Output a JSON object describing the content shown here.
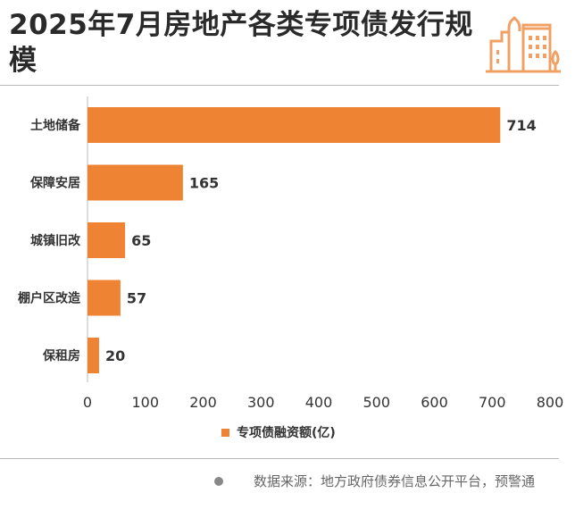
{
  "title": "2025年7月房地产各类专项债发行规模",
  "icon": "city-buildings-icon",
  "chart_data": {
    "type": "bar",
    "orientation": "horizontal",
    "categories": [
      "土地储备",
      "保障安居",
      "城镇旧改",
      "棚户区改造",
      "保租房"
    ],
    "values": [
      714,
      165,
      65,
      57,
      20
    ],
    "xlim": [
      0,
      800
    ],
    "xticks": [
      0,
      100,
      200,
      300,
      400,
      500,
      600,
      700,
      800
    ],
    "series": [
      {
        "name": "专项债融资额(亿)",
        "values": [
          714,
          165,
          65,
          57,
          20
        ]
      }
    ],
    "legend": "bottom",
    "grid": false,
    "color": "#ee8333"
  },
  "source": "数据来源：地方政府债券信息公开平台，预警通"
}
